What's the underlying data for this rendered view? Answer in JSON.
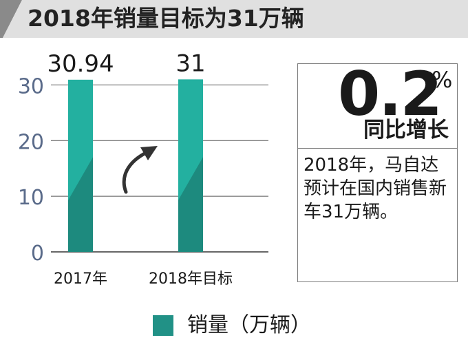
{
  "title": "2018年销量目标为31万辆",
  "colors": {
    "bar_light": "#23b0a0",
    "bar_dark": "#1d8a7e",
    "title_band": "#e0e0e0",
    "title_stripe": "#8a8a8a",
    "text": "#1a1a1a",
    "arrow": "#333333"
  },
  "chart_data": {
    "type": "bar",
    "categories": [
      "2017年",
      "2018年目标"
    ],
    "values": [
      30.94,
      31
    ],
    "data_labels": [
      "30.94",
      "31"
    ],
    "y_ticks": [
      0,
      10,
      20,
      30
    ],
    "ylim": [
      0,
      35
    ],
    "legend": "销量（万辆）",
    "legend_position": "bottom",
    "grid": true
  },
  "callout": {
    "big_number": "0.2",
    "percent": "%",
    "label": "同比增长",
    "text": "2018年，马自达预计在国内销售新车31万辆。"
  },
  "icons": {
    "arrow": "curved-up-right-arrow-icon"
  }
}
